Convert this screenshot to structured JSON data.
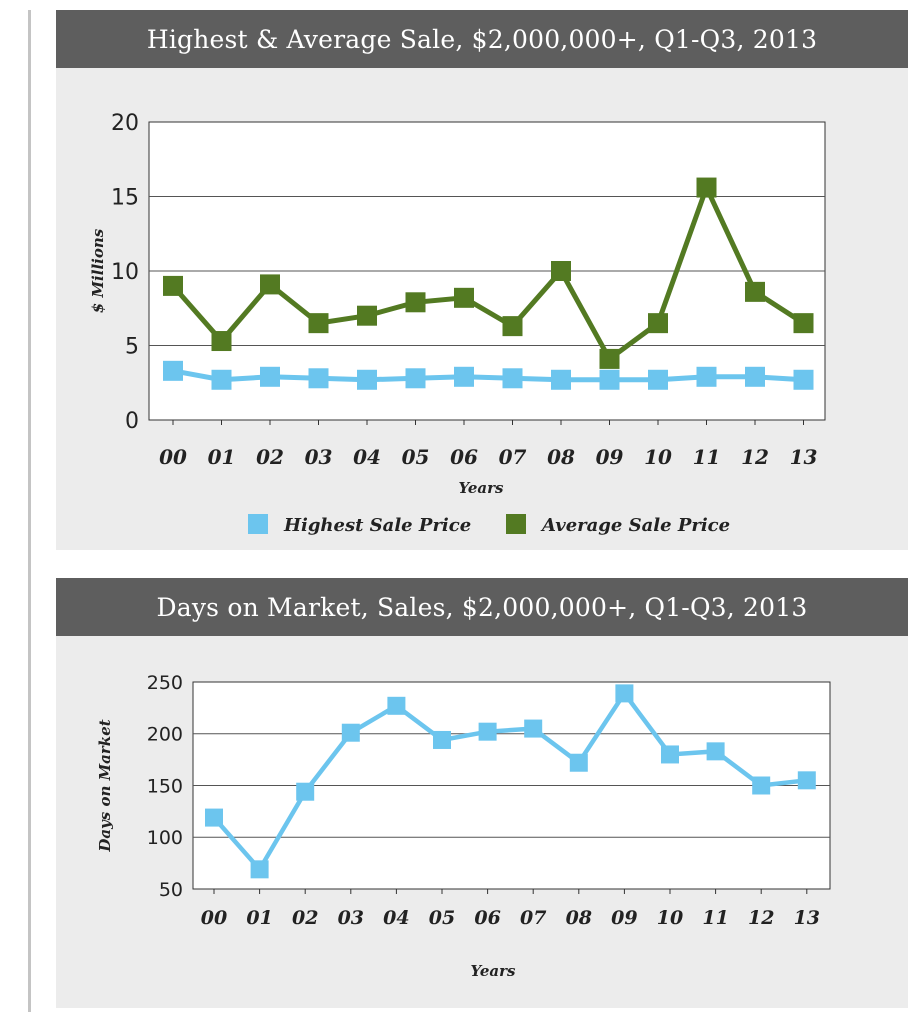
{
  "charts": [
    {
      "type": "line",
      "title": "Highest & Average Sale, $2,000,000+, Q1-Q3, 2013",
      "xlabel": "Years",
      "ylabel": "$ Millions",
      "categories": [
        "00",
        "01",
        "02",
        "03",
        "04",
        "05",
        "06",
        "07",
        "08",
        "09",
        "10",
        "11",
        "12",
        "13"
      ],
      "ylim": [
        0,
        20
      ],
      "yticks": [
        "0",
        "5",
        "10",
        "15",
        "20"
      ],
      "grid": true,
      "legend_position": "bottom",
      "series": [
        {
          "name": "Highest Sale Price",
          "color": "#6cc5ee",
          "values": [
            3.3,
            2.7,
            2.9,
            2.8,
            2.7,
            2.8,
            2.9,
            2.8,
            2.7,
            2.7,
            2.7,
            2.9,
            2.9,
            2.7
          ]
        },
        {
          "name": "Average Sale Price",
          "color": "#537a22",
          "values": [
            9.0,
            5.3,
            9.1,
            6.5,
            7.0,
            7.9,
            8.2,
            6.3,
            10.0,
            4.1,
            6.5,
            15.6,
            8.6,
            6.5
          ]
        }
      ]
    },
    {
      "type": "line",
      "title": "Days on Market, Sales, $2,000,000+, Q1-Q3, 2013",
      "xlabel": "Years",
      "ylabel": "Days on Market",
      "categories": [
        "00",
        "01",
        "02",
        "03",
        "04",
        "05",
        "06",
        "07",
        "08",
        "09",
        "10",
        "11",
        "12",
        "13"
      ],
      "ylim": [
        50,
        250
      ],
      "yticks": [
        "50",
        "100",
        "150",
        "200",
        "250"
      ],
      "grid": true,
      "series": [
        {
          "name": "",
          "color": "#6cc5ee",
          "values": [
            119,
            69,
            144,
            201,
            227,
            194,
            202,
            205,
            172,
            239,
            180,
            183,
            150,
            155
          ]
        }
      ]
    }
  ]
}
